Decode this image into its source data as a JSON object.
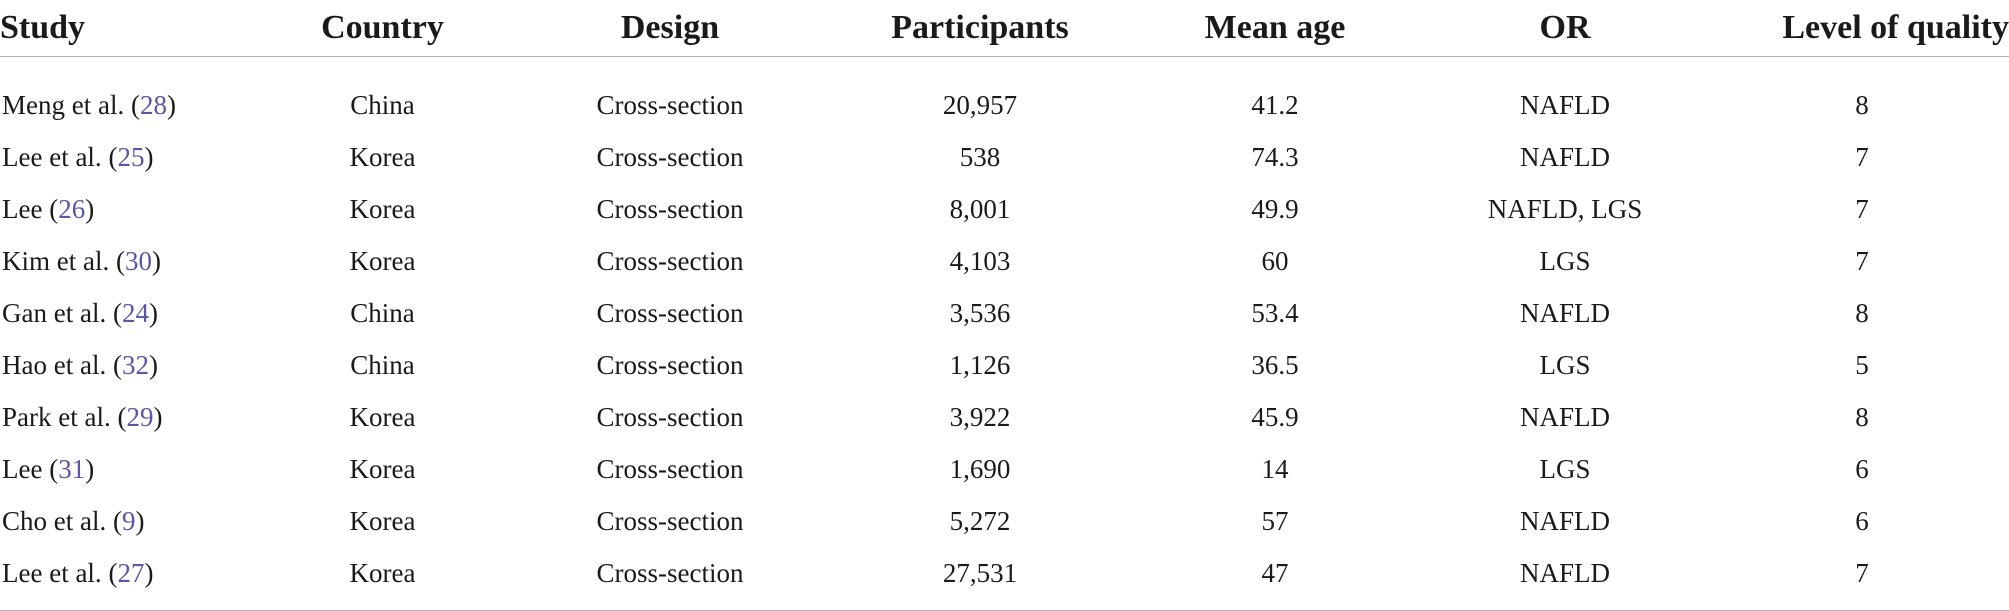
{
  "table": {
    "headers": {
      "study": "Study",
      "country": "Country",
      "design": "Design",
      "participants": "Participants",
      "mean_age": "Mean age",
      "or": "OR",
      "quality": "Level of quality"
    },
    "rows": [
      {
        "author": "Meng et al.",
        "ref": "28",
        "country": "China",
        "design": "Cross-section",
        "participants": "20,957",
        "mean_age": "41.2",
        "or": "NAFLD",
        "quality": "8"
      },
      {
        "author": "Lee et al.",
        "ref": "25",
        "country": "Korea",
        "design": "Cross-section",
        "participants": "538",
        "mean_age": "74.3",
        "or": "NAFLD",
        "quality": "7"
      },
      {
        "author": "Lee",
        "ref": "26",
        "country": "Korea",
        "design": "Cross-section",
        "participants": "8,001",
        "mean_age": "49.9",
        "or": "NAFLD, LGS",
        "quality": "7"
      },
      {
        "author": "Kim et al.",
        "ref": "30",
        "country": "Korea",
        "design": "Cross-section",
        "participants": "4,103",
        "mean_age": "60",
        "or": "LGS",
        "quality": "7"
      },
      {
        "author": "Gan et al.",
        "ref": "24",
        "country": "China",
        "design": "Cross-section",
        "participants": "3,536",
        "mean_age": "53.4",
        "or": "NAFLD",
        "quality": "8"
      },
      {
        "author": "Hao et al.",
        "ref": "32",
        "country": "China",
        "design": "Cross-section",
        "participants": "1,126",
        "mean_age": "36.5",
        "or": "LGS",
        "quality": "5"
      },
      {
        "author": "Park et al.",
        "ref": "29",
        "country": "Korea",
        "design": "Cross-section",
        "participants": "3,922",
        "mean_age": "45.9",
        "or": "NAFLD",
        "quality": "8"
      },
      {
        "author": "Lee",
        "ref": "31",
        "country": "Korea",
        "design": "Cross-section",
        "participants": "1,690",
        "mean_age": "14",
        "or": "LGS",
        "quality": "6"
      },
      {
        "author": "Cho et al.",
        "ref": "9",
        "country": "Korea",
        "design": "Cross-section",
        "participants": "5,272",
        "mean_age": "57",
        "or": "NAFLD",
        "quality": "6"
      },
      {
        "author": "Lee et al.",
        "ref": "27",
        "country": "Korea",
        "design": "Cross-section",
        "participants": "27,531",
        "mean_age": "47",
        "or": "NAFLD",
        "quality": "7"
      }
    ],
    "colors": {
      "text": "#1a1a1a",
      "reference_link": "#5b57a8",
      "rule": "#b5b5b5"
    }
  }
}
